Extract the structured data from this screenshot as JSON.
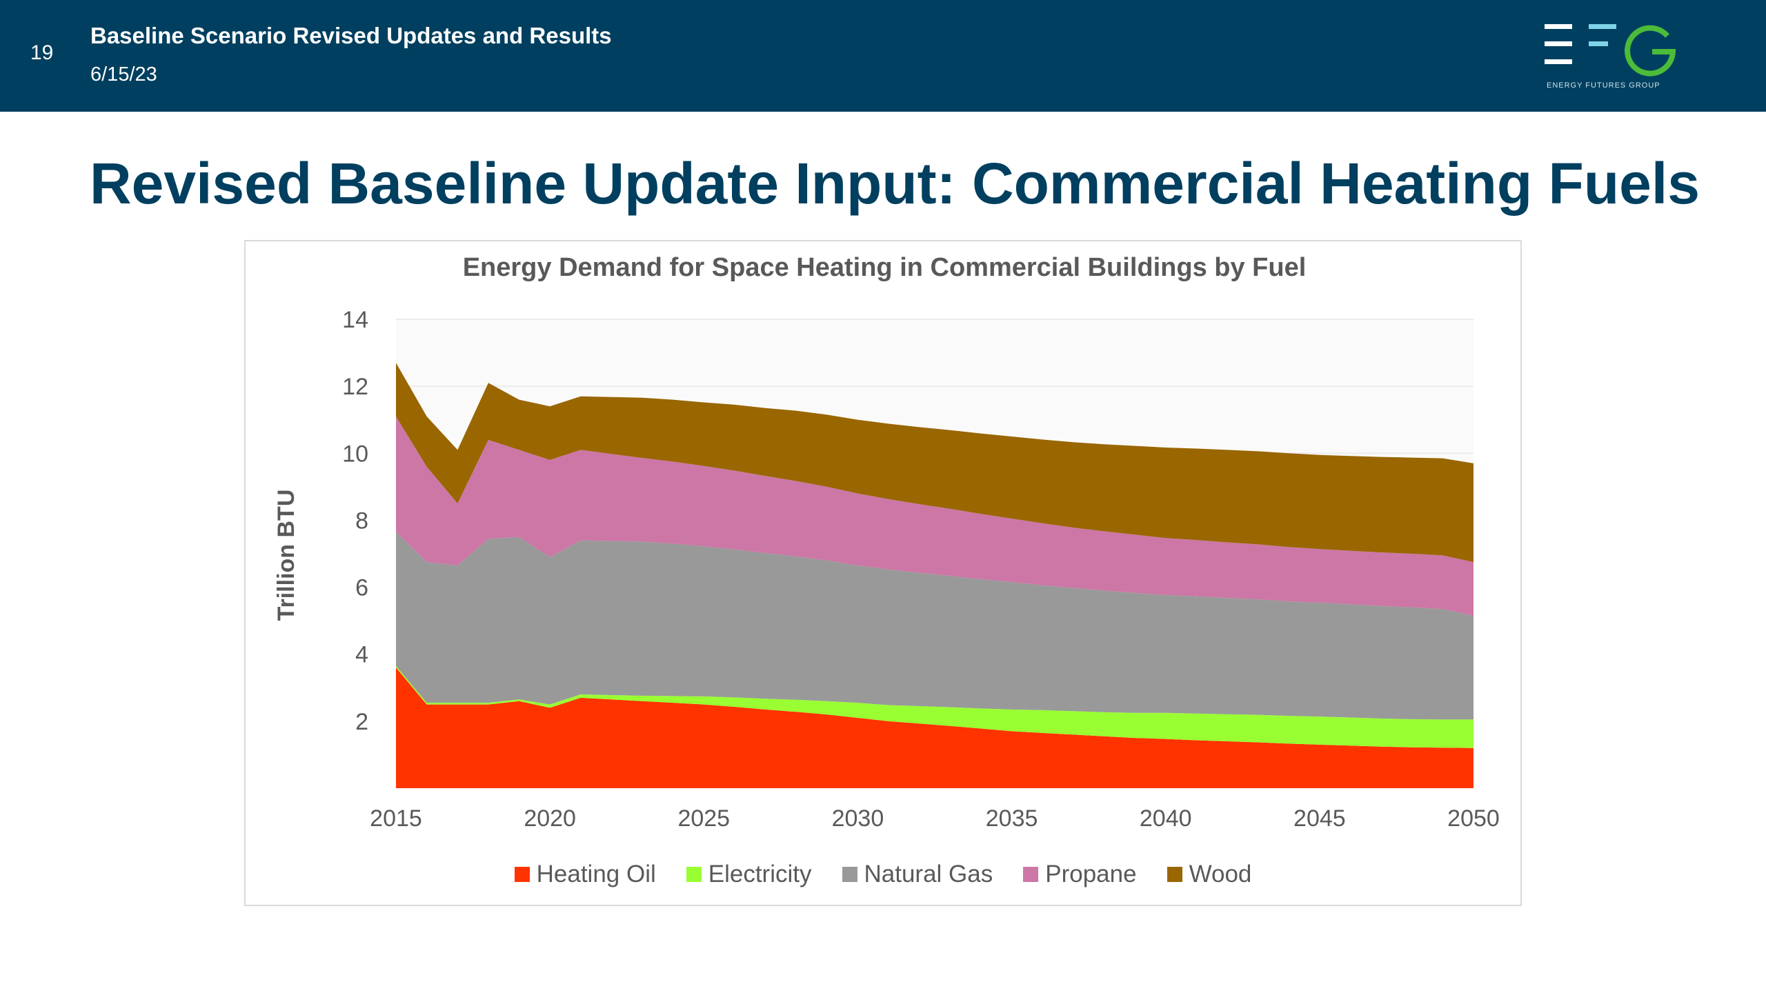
{
  "header": {
    "slide_number": "19",
    "deck_title": "Baseline Scenario Revised Updates and Results",
    "date": "6/15/23",
    "logo_caption": "ENERGY FUTURES GROUP",
    "bg_color": "#003f5f"
  },
  "slide": {
    "title": "Revised Baseline Update Input: Commercial Heating Fuels"
  },
  "chart_data": {
    "type": "area",
    "stacked": true,
    "title": "Energy Demand for Space Heating in Commercial Buildings by Fuel",
    "ylabel": "Trillion BTU",
    "xlabel": "",
    "ylim": [
      0,
      14
    ],
    "yticks": [
      2,
      4,
      6,
      8,
      10,
      12,
      14
    ],
    "xticks": [
      2015,
      2020,
      2025,
      2030,
      2035,
      2040,
      2045,
      2050
    ],
    "grid": true,
    "legend_position": "bottom",
    "x": [
      2015,
      2016,
      2017,
      2018,
      2019,
      2020,
      2021,
      2022,
      2023,
      2024,
      2025,
      2026,
      2027,
      2028,
      2029,
      2030,
      2031,
      2032,
      2033,
      2034,
      2035,
      2036,
      2037,
      2038,
      2039,
      2040,
      2041,
      2042,
      2043,
      2044,
      2045,
      2046,
      2047,
      2048,
      2049,
      2050
    ],
    "series": [
      {
        "name": "Heating Oil",
        "color": "#ff3300",
        "values": [
          3.6,
          2.5,
          2.5,
          2.5,
          2.6,
          2.4,
          2.7,
          2.65,
          2.6,
          2.55,
          2.5,
          2.43,
          2.35,
          2.28,
          2.2,
          2.1,
          2.0,
          1.93,
          1.86,
          1.78,
          1.7,
          1.65,
          1.6,
          1.55,
          1.5,
          1.47,
          1.43,
          1.4,
          1.37,
          1.33,
          1.3,
          1.27,
          1.24,
          1.22,
          1.21,
          1.2
        ]
      },
      {
        "name": "Electricity",
        "color": "#99ff33",
        "values": [
          0.05,
          0.05,
          0.05,
          0.05,
          0.05,
          0.1,
          0.1,
          0.13,
          0.16,
          0.2,
          0.24,
          0.28,
          0.32,
          0.36,
          0.4,
          0.45,
          0.48,
          0.52,
          0.56,
          0.6,
          0.65,
          0.68,
          0.7,
          0.72,
          0.75,
          0.78,
          0.8,
          0.81,
          0.82,
          0.83,
          0.84,
          0.84,
          0.84,
          0.84,
          0.84,
          0.85
        ]
      },
      {
        "name": "Natural Gas",
        "color": "#999999",
        "values": [
          4.0,
          4.2,
          4.1,
          4.9,
          4.85,
          4.4,
          4.6,
          4.6,
          4.6,
          4.55,
          4.48,
          4.42,
          4.35,
          4.28,
          4.2,
          4.1,
          4.05,
          3.98,
          3.92,
          3.86,
          3.8,
          3.73,
          3.68,
          3.63,
          3.58,
          3.52,
          3.5,
          3.47,
          3.45,
          3.42,
          3.4,
          3.38,
          3.36,
          3.34,
          3.3,
          3.1
        ]
      },
      {
        "name": "Propane",
        "color": "#cc77a6",
        "values": [
          3.45,
          2.85,
          1.85,
          2.95,
          2.6,
          2.9,
          2.7,
          2.6,
          2.5,
          2.45,
          2.4,
          2.35,
          2.3,
          2.25,
          2.2,
          2.15,
          2.1,
          2.05,
          2.0,
          1.95,
          1.9,
          1.85,
          1.8,
          1.77,
          1.74,
          1.7,
          1.68,
          1.66,
          1.64,
          1.62,
          1.6,
          1.6,
          1.6,
          1.6,
          1.6,
          1.6
        ]
      },
      {
        "name": "Wood",
        "color": "#996600",
        "values": [
          1.6,
          1.5,
          1.6,
          1.7,
          1.5,
          1.6,
          1.6,
          1.7,
          1.8,
          1.85,
          1.9,
          1.97,
          2.03,
          2.1,
          2.15,
          2.2,
          2.25,
          2.3,
          2.35,
          2.4,
          2.45,
          2.5,
          2.55,
          2.6,
          2.65,
          2.7,
          2.73,
          2.76,
          2.78,
          2.8,
          2.81,
          2.83,
          2.85,
          2.87,
          2.9,
          2.95
        ]
      }
    ]
  }
}
